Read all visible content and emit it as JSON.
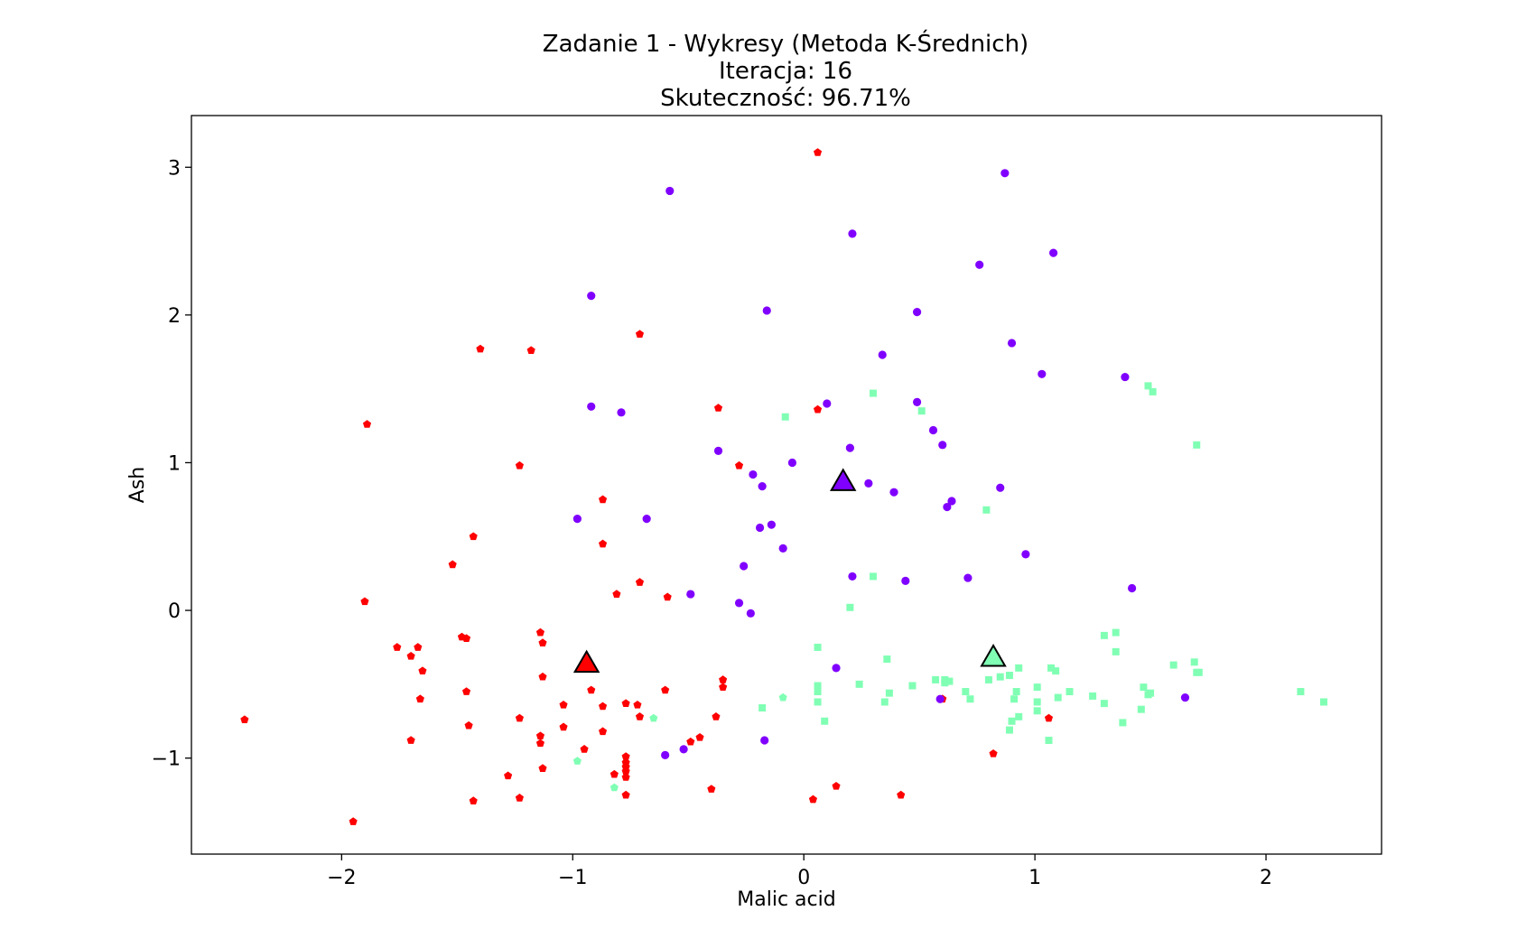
{
  "chart_data": {
    "type": "scatter",
    "title_lines": [
      "Zadanie 1 - Wykresy (Metoda K-Średnich)",
      "Iteracja: 16",
      "Skuteczność: 96.71%"
    ],
    "xlabel": "Malic acid",
    "ylabel": "Ash",
    "xlim": [
      -2.65,
      2.5
    ],
    "ylim": [
      -1.65,
      3.35
    ],
    "xticks": [
      -2,
      -1,
      0,
      1,
      2
    ],
    "xtick_labels": [
      "−2",
      "−1",
      "0",
      "1",
      "2"
    ],
    "yticks": [
      -1,
      0,
      1,
      2,
      3
    ],
    "ytick_labels": [
      "−1",
      "0",
      "1",
      "2",
      "3"
    ],
    "grid": false,
    "legend": "none",
    "series": [
      {
        "color": "#ff0000",
        "marker": "pentagon",
        "points": [
          [
            0.06,
            3.1
          ],
          [
            -0.71,
            1.87
          ],
          [
            -1.4,
            1.77
          ],
          [
            -1.18,
            1.76
          ],
          [
            -0.37,
            1.37
          ],
          [
            -1.89,
            1.26
          ],
          [
            -1.23,
            0.98
          ],
          [
            -0.87,
            0.75
          ],
          [
            -1.43,
            0.5
          ],
          [
            -0.87,
            0.45
          ],
          [
            -1.52,
            0.31
          ],
          [
            -0.71,
            0.19
          ],
          [
            -0.81,
            0.11
          ],
          [
            -0.59,
            0.09
          ],
          [
            -1.9,
            0.06
          ],
          [
            -1.14,
            -0.15
          ],
          [
            -1.48,
            -0.18
          ],
          [
            -1.46,
            -0.19
          ],
          [
            -1.13,
            -0.22
          ],
          [
            -1.76,
            -0.25
          ],
          [
            -1.67,
            -0.25
          ],
          [
            -1.7,
            -0.31
          ],
          [
            -1.65,
            -0.41
          ],
          [
            -1.13,
            -0.45
          ],
          [
            -0.35,
            -0.47
          ],
          [
            -0.35,
            -0.52
          ],
          [
            -0.92,
            -0.54
          ],
          [
            -1.46,
            -0.55
          ],
          [
            -0.6,
            -0.54
          ],
          [
            -1.66,
            -0.6
          ],
          [
            -0.77,
            -0.63
          ],
          [
            -1.04,
            -0.64
          ],
          [
            -0.87,
            -0.65
          ],
          [
            -0.72,
            -0.64
          ],
          [
            -0.71,
            -0.72
          ],
          [
            -0.38,
            -0.72
          ],
          [
            -1.23,
            -0.73
          ],
          [
            -2.42,
            -0.74
          ],
          [
            -1.45,
            -0.78
          ],
          [
            -1.04,
            -0.79
          ],
          [
            -0.87,
            -0.82
          ],
          [
            -1.14,
            -0.85
          ],
          [
            -1.7,
            -0.88
          ],
          [
            -0.49,
            -0.89
          ],
          [
            -1.14,
            -0.9
          ],
          [
            -0.95,
            -0.94
          ],
          [
            -0.77,
            -0.99
          ],
          [
            -0.77,
            -1.03
          ],
          [
            -0.77,
            -1.06
          ],
          [
            -1.13,
            -1.07
          ],
          [
            -0.77,
            -1.09
          ],
          [
            -0.82,
            -1.11
          ],
          [
            -1.28,
            -1.12
          ],
          [
            -0.77,
            -1.13
          ],
          [
            -0.4,
            -1.21
          ],
          [
            0.14,
            -1.19
          ],
          [
            -0.77,
            -1.25
          ],
          [
            0.42,
            -1.25
          ],
          [
            -1.23,
            -1.27
          ],
          [
            -1.43,
            -1.29
          ],
          [
            0.04,
            -1.28
          ],
          [
            -1.95,
            -1.43
          ],
          [
            0.6,
            -0.6
          ],
          [
            1.06,
            -0.73
          ],
          [
            0.82,
            -0.97
          ],
          [
            0.06,
            1.36
          ],
          [
            -0.28,
            0.98
          ],
          [
            -0.45,
            -0.86
          ]
        ]
      },
      {
        "color": "#8000ff",
        "marker": "circle",
        "points": [
          [
            0.87,
            2.96
          ],
          [
            -0.58,
            2.84
          ],
          [
            0.21,
            2.55
          ],
          [
            1.08,
            2.42
          ],
          [
            0.76,
            2.34
          ],
          [
            -0.92,
            2.13
          ],
          [
            -0.16,
            2.03
          ],
          [
            0.49,
            2.02
          ],
          [
            0.9,
            1.81
          ],
          [
            0.34,
            1.73
          ],
          [
            1.03,
            1.6
          ],
          [
            1.39,
            1.58
          ],
          [
            0.49,
            1.41
          ],
          [
            0.1,
            1.4
          ],
          [
            -0.92,
            1.38
          ],
          [
            -0.79,
            1.34
          ],
          [
            0.56,
            1.22
          ],
          [
            0.2,
            1.1
          ],
          [
            0.6,
            1.12
          ],
          [
            -0.37,
            1.08
          ],
          [
            -0.05,
            1.0
          ],
          [
            -0.22,
            0.92
          ],
          [
            0.28,
            0.86
          ],
          [
            -0.18,
            0.84
          ],
          [
            0.85,
            0.83
          ],
          [
            0.39,
            0.8
          ],
          [
            0.64,
            0.74
          ],
          [
            0.62,
            0.7
          ],
          [
            -0.98,
            0.62
          ],
          [
            -0.68,
            0.62
          ],
          [
            -0.14,
            0.58
          ],
          [
            -0.19,
            0.56
          ],
          [
            -0.09,
            0.42
          ],
          [
            0.96,
            0.38
          ],
          [
            -0.26,
            0.3
          ],
          [
            0.21,
            0.23
          ],
          [
            0.71,
            0.22
          ],
          [
            0.44,
            0.2
          ],
          [
            1.42,
            0.15
          ],
          [
            -0.49,
            0.11
          ],
          [
            -0.28,
            0.05
          ],
          [
            -0.23,
            -0.02
          ],
          [
            0.14,
            -0.39
          ],
          [
            1.65,
            -0.59
          ],
          [
            0.59,
            -0.6
          ],
          [
            -0.17,
            -0.88
          ],
          [
            -0.52,
            -0.94
          ],
          [
            -0.6,
            -0.98
          ]
        ]
      },
      {
        "color": "#80ffb4",
        "marker": "square",
        "points": [
          [
            1.49,
            1.52
          ],
          [
            0.3,
            1.47
          ],
          [
            1.51,
            1.48
          ],
          [
            0.51,
            1.35
          ],
          [
            -0.08,
            1.31
          ],
          [
            1.7,
            1.12
          ],
          [
            0.79,
            0.68
          ],
          [
            0.3,
            0.23
          ],
          [
            0.2,
            0.02
          ],
          [
            1.35,
            -0.15
          ],
          [
            1.3,
            -0.17
          ],
          [
            0.06,
            -0.25
          ],
          [
            1.35,
            -0.28
          ],
          [
            0.36,
            -0.33
          ],
          [
            1.69,
            -0.35
          ],
          [
            1.6,
            -0.37
          ],
          [
            0.93,
            -0.39
          ],
          [
            1.07,
            -0.39
          ],
          [
            1.09,
            -0.41
          ],
          [
            1.7,
            -0.42
          ],
          [
            1.71,
            -0.42
          ],
          [
            0.89,
            -0.44
          ],
          [
            0.85,
            -0.45
          ],
          [
            0.57,
            -0.47
          ],
          [
            0.8,
            -0.47
          ],
          [
            0.61,
            -0.47
          ],
          [
            0.63,
            -0.48
          ],
          [
            0.61,
            -0.49
          ],
          [
            0.24,
            -0.5
          ],
          [
            0.47,
            -0.51
          ],
          [
            0.06,
            -0.51
          ],
          [
            1.01,
            -0.52
          ],
          [
            1.47,
            -0.52
          ],
          [
            0.7,
            -0.55
          ],
          [
            0.92,
            -0.55
          ],
          [
            0.06,
            -0.55
          ],
          [
            0.37,
            -0.56
          ],
          [
            2.15,
            -0.55
          ],
          [
            1.5,
            -0.56
          ],
          [
            1.15,
            -0.55
          ],
          [
            1.49,
            -0.57
          ],
          [
            1.25,
            -0.58
          ],
          [
            1.1,
            -0.59
          ],
          [
            0.72,
            -0.6
          ],
          [
            0.91,
            -0.6
          ],
          [
            0.06,
            -0.62
          ],
          [
            0.35,
            -0.62
          ],
          [
            1.01,
            -0.62
          ],
          [
            2.25,
            -0.62
          ],
          [
            1.3,
            -0.63
          ],
          [
            -0.18,
            -0.66
          ],
          [
            1.46,
            -0.67
          ],
          [
            1.01,
            -0.68
          ],
          [
            0.93,
            -0.72
          ],
          [
            0.9,
            -0.75
          ],
          [
            0.09,
            -0.75
          ],
          [
            1.38,
            -0.76
          ],
          [
            0.89,
            -0.81
          ],
          [
            1.06,
            -0.88
          ]
        ]
      },
      {
        "color": "#80ffb4",
        "marker": "pentagon",
        "points": [
          [
            -0.09,
            -0.59
          ],
          [
            -0.65,
            -0.73
          ],
          [
            -0.98,
            -1.02
          ],
          [
            -0.82,
            -1.2
          ]
        ]
      }
    ],
    "centroids": [
      {
        "x": 0.17,
        "y": 0.86,
        "color": "#8000ff",
        "marker": "triangle"
      },
      {
        "x": -0.94,
        "y": -0.37,
        "color": "#ff0000",
        "marker": "triangle"
      },
      {
        "x": 0.82,
        "y": -0.33,
        "color": "#80ffb4",
        "marker": "triangle"
      }
    ]
  }
}
